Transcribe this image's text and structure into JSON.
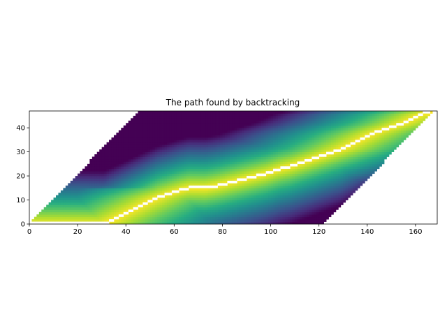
{
  "chart_data": {
    "type": "heatmap",
    "title": "The path found by backtracking",
    "xlabel": "",
    "ylabel": "",
    "xlim": [
      0,
      169
    ],
    "ylim": [
      0,
      47
    ],
    "x_ticks": [
      0,
      20,
      40,
      60,
      80,
      100,
      120,
      140,
      160
    ],
    "y_ticks": [
      0,
      10,
      20,
      30,
      40
    ],
    "colormap": "viridis",
    "grid": false,
    "legend": "none",
    "valid_band": {
      "description": "cells with non-missing values form a parallelogram; for each row y, x runs from band_start to band_start + band_width",
      "band_start_slope": 0.98,
      "band_width": 122
    },
    "path_color": "#ffffff",
    "path": [
      [
        0,
        0
      ],
      [
        31,
        0
      ],
      [
        33,
        1
      ],
      [
        35,
        2
      ],
      [
        37,
        3
      ],
      [
        39,
        4
      ],
      [
        41,
        5
      ],
      [
        43,
        6
      ],
      [
        45,
        7
      ],
      [
        47,
        8
      ],
      [
        49,
        9
      ],
      [
        51,
        10
      ],
      [
        53,
        11
      ],
      [
        56,
        12
      ],
      [
        59,
        13
      ],
      [
        62,
        14
      ],
      [
        66,
        15
      ],
      [
        73,
        15
      ],
      [
        78,
        16
      ],
      [
        82,
        17
      ],
      [
        86,
        18
      ],
      [
        90,
        19
      ],
      [
        94,
        20
      ],
      [
        98,
        21
      ],
      [
        101,
        22
      ],
      [
        104,
        23
      ],
      [
        108,
        24
      ],
      [
        111,
        25
      ],
      [
        114,
        26
      ],
      [
        117,
        27
      ],
      [
        120,
        28
      ],
      [
        123,
        29
      ],
      [
        126,
        30
      ],
      [
        129,
        31
      ],
      [
        131,
        32
      ],
      [
        133,
        33
      ],
      [
        135,
        34
      ],
      [
        137,
        35
      ],
      [
        139,
        36
      ],
      [
        141,
        37
      ],
      [
        143,
        38
      ],
      [
        146,
        39
      ],
      [
        149,
        40
      ],
      [
        152,
        41
      ],
      [
        155,
        42
      ],
      [
        157,
        43
      ],
      [
        159,
        44
      ],
      [
        161,
        45
      ],
      [
        163,
        46
      ],
      [
        166,
        46
      ]
    ]
  }
}
